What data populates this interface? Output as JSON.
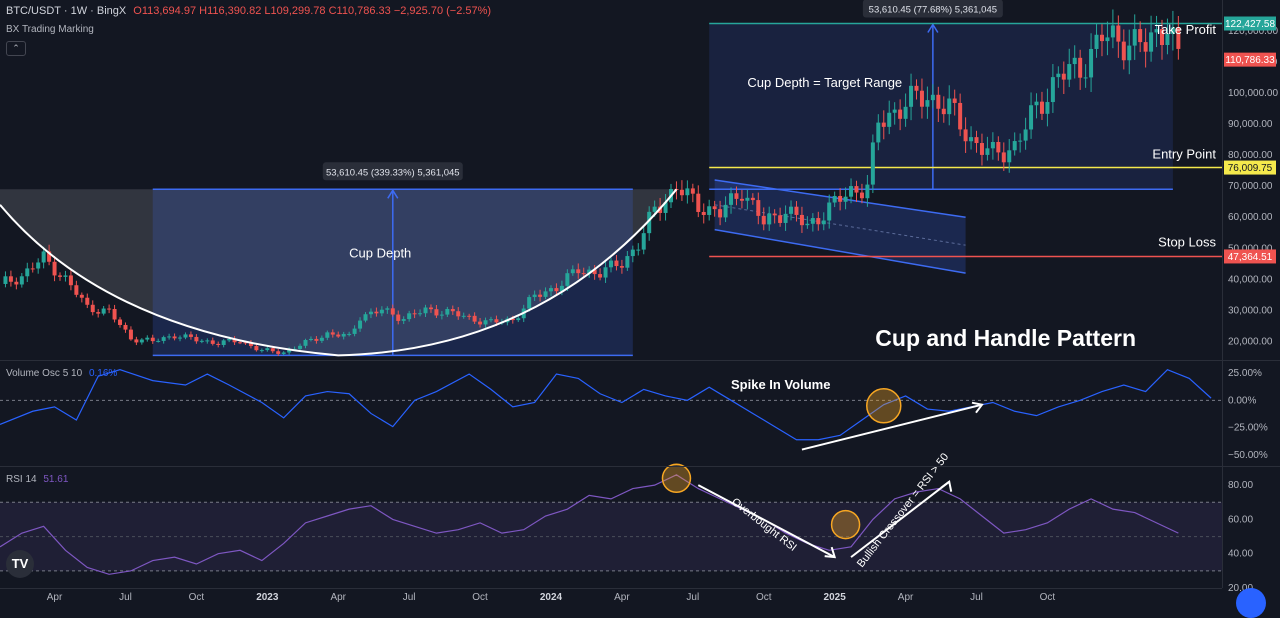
{
  "header": {
    "symbol": "BTC/USDT · 1W · BingX",
    "ohlc": "O113,694.97 H116,390.82 L109,299.78 C110,786.33 −2,925.70 (−2.57%)",
    "indicator": "BX Trading Marking",
    "collapse_icon": "chevron-up-icon"
  },
  "volume_panel": {
    "name": "Volume Osc 5 10",
    "value": "0.16%"
  },
  "rsi_panel": {
    "name": "RSI 14",
    "value": "51.61"
  },
  "logo": "TV",
  "colors": {
    "background": "#131722",
    "up": "#26a69a",
    "down": "#ef5350",
    "take_profit": "#26a69a",
    "entry": "#f5e94c",
    "stop": "#ef5350",
    "box_border": "#3d6bf2",
    "osc_line": "#2962ff",
    "rsi_line": "#7e57c2",
    "highlight": "#f6a623"
  },
  "chart_data": [
    {
      "type": "candlestick",
      "title": "Cup and Handle Pattern",
      "ylim": [
        14000,
        130000
      ],
      "y_ticks": [
        "20,000.00",
        "30,000.00",
        "40,000.00",
        "50,000.00",
        "60,000.00",
        "70,000.00",
        "80,000.00",
        "90,000.00",
        "100,000.00",
        "110,000.00",
        "120,000.00"
      ],
      "x_ticks": [
        "Apr",
        "Jul",
        "Oct",
        "2023",
        "Apr",
        "Jul",
        "Oct",
        "2024",
        "Apr",
        "Jul",
        "Oct",
        "2025",
        "Apr",
        "Jul",
        "Oct"
      ],
      "close_path": [
        [
          0,
          38500
        ],
        [
          4,
          41000
        ],
        [
          8,
          47000
        ],
        [
          12,
          40000
        ],
        [
          16,
          31000
        ],
        [
          20,
          29500
        ],
        [
          24,
          21000
        ],
        [
          28,
          20000
        ],
        [
          32,
          22000
        ],
        [
          36,
          20500
        ],
        [
          40,
          19500
        ],
        [
          44,
          20200
        ],
        [
          48,
          17000
        ],
        [
          52,
          16500
        ],
        [
          56,
          19500
        ],
        [
          60,
          22500
        ],
        [
          64,
          21500
        ],
        [
          66,
          28000
        ],
        [
          70,
          30000
        ],
        [
          74,
          27500
        ],
        [
          78,
          30000
        ],
        [
          82,
          29500
        ],
        [
          86,
          27500
        ],
        [
          90,
          26000
        ],
        [
          94,
          27000
        ],
        [
          98,
          34500
        ],
        [
          102,
          37500
        ],
        [
          106,
          43000
        ],
        [
          110,
          42000
        ],
        [
          114,
          45500
        ],
        [
          117,
          51000
        ],
        [
          120,
          62500
        ],
        [
          124,
          69500
        ],
        [
          128,
          64000
        ],
        [
          132,
          61000
        ],
        [
          136,
          69000
        ],
        [
          140,
          58000
        ],
        [
          144,
          62500
        ],
        [
          148,
          57000
        ],
        [
          152,
          63000
        ],
        [
          156,
          68500
        ],
        [
          159,
          70000
        ],
        [
          161,
          90000
        ],
        [
          166,
          97000
        ],
        [
          170,
          99000
        ],
        [
          174,
          95000
        ],
        [
          178,
          85000
        ],
        [
          182,
          80000
        ],
        [
          186,
          83000
        ],
        [
          190,
          95000
        ],
        [
          194,
          105500
        ],
        [
          198,
          108000
        ],
        [
          202,
          118000
        ],
        [
          206,
          117000
        ],
        [
          210,
          115000
        ],
        [
          214,
          123000
        ],
        [
          216,
          110786
        ]
      ],
      "annotations": {
        "cup_depth_label": "Cup Depth",
        "target_range_label": "Cup Depth = Target Range",
        "cup_measure": "53,610.45 (339.33%) 5,361,045",
        "target_measure": "53,610.45 (77.68%) 5,361,045",
        "take_profit_label": "Take Profit",
        "entry_label": "Entry Point",
        "stop_label": "Stop Loss"
      },
      "levels": {
        "take_profit": 122427.58,
        "take_profit_text": "122,427.58",
        "entry": 76009.75,
        "entry_text": "76,009.75",
        "stop": 47364.51,
        "stop_text": "47,364.51",
        "last": 110786.33,
        "last_text": "110,786.33"
      },
      "cup_box": {
        "x_start_week": 28,
        "x_end_week": 116,
        "low": 15500,
        "high": 69000
      },
      "target_box": {
        "x_start_week": 130,
        "x_end_week": 215,
        "low": 69000,
        "high": 122427.58
      },
      "handle_channel": {
        "x_start_week": 131,
        "x_end_week": 177
      }
    },
    {
      "type": "line",
      "name": "Volume Osc 5 10",
      "ylim": [
        -60,
        35
      ],
      "y_ticks": [
        "25.00%",
        "0.00%",
        "−25.00%",
        "−50.00%"
      ],
      "annotation": "Spike In Volume",
      "values": [
        [
          0,
          -22
        ],
        [
          6,
          -10
        ],
        [
          10,
          -6
        ],
        [
          14,
          -18
        ],
        [
          18,
          22
        ],
        [
          22,
          28
        ],
        [
          28,
          18
        ],
        [
          34,
          14
        ],
        [
          38,
          24
        ],
        [
          42,
          14
        ],
        [
          48,
          -2
        ],
        [
          52,
          -16
        ],
        [
          56,
          4
        ],
        [
          60,
          8
        ],
        [
          64,
          6
        ],
        [
          68,
          -12
        ],
        [
          72,
          -24
        ],
        [
          76,
          0
        ],
        [
          80,
          8
        ],
        [
          86,
          24
        ],
        [
          90,
          10
        ],
        [
          94,
          -6
        ],
        [
          98,
          -2
        ],
        [
          102,
          24
        ],
        [
          106,
          20
        ],
        [
          110,
          6
        ],
        [
          114,
          -2
        ],
        [
          118,
          10
        ],
        [
          122,
          4
        ],
        [
          126,
          0
        ],
        [
          130,
          12
        ],
        [
          134,
          0
        ],
        [
          138,
          -12
        ],
        [
          142,
          -24
        ],
        [
          146,
          -36
        ],
        [
          150,
          -36
        ],
        [
          154,
          -32
        ],
        [
          158,
          -18
        ],
        [
          162,
          -4
        ],
        [
          166,
          4
        ],
        [
          170,
          -8
        ],
        [
          174,
          -10
        ],
        [
          178,
          -6
        ],
        [
          182,
          -2
        ],
        [
          186,
          -10
        ],
        [
          190,
          -14
        ],
        [
          194,
          -6
        ],
        [
          198,
          0
        ],
        [
          202,
          8
        ],
        [
          206,
          14
        ],
        [
          210,
          8
        ],
        [
          214,
          28
        ],
        [
          218,
          20
        ],
        [
          222,
          2
        ]
      ]
    },
    {
      "type": "line",
      "name": "RSI 14",
      "ylim": [
        20,
        90
      ],
      "y_ticks": [
        "80.00",
        "60.00",
        "40.00",
        "20.00"
      ],
      "bands": [
        30,
        70
      ],
      "annotations": [
        "Overbought RSI",
        "Bullish Crossover = RSI > 50"
      ],
      "values": [
        [
          0,
          44
        ],
        [
          4,
          52
        ],
        [
          8,
          56
        ],
        [
          12,
          42
        ],
        [
          16,
          32
        ],
        [
          20,
          28
        ],
        [
          24,
          30
        ],
        [
          28,
          36
        ],
        [
          32,
          38
        ],
        [
          36,
          34
        ],
        [
          40,
          40
        ],
        [
          44,
          42
        ],
        [
          48,
          36
        ],
        [
          52,
          46
        ],
        [
          56,
          58
        ],
        [
          60,
          62
        ],
        [
          64,
          66
        ],
        [
          68,
          68
        ],
        [
          72,
          60
        ],
        [
          76,
          56
        ],
        [
          80,
          52
        ],
        [
          84,
          54
        ],
        [
          88,
          58
        ],
        [
          92,
          52
        ],
        [
          96,
          54
        ],
        [
          100,
          62
        ],
        [
          104,
          66
        ],
        [
          108,
          74
        ],
        [
          112,
          72
        ],
        [
          116,
          78
        ],
        [
          120,
          80
        ],
        [
          124,
          86
        ],
        [
          128,
          78
        ],
        [
          132,
          72
        ],
        [
          136,
          66
        ],
        [
          140,
          60
        ],
        [
          144,
          52
        ],
        [
          148,
          46
        ],
        [
          152,
          42
        ],
        [
          156,
          44
        ],
        [
          160,
          60
        ],
        [
          164,
          72
        ],
        [
          168,
          76
        ],
        [
          172,
          78
        ],
        [
          176,
          72
        ],
        [
          180,
          62
        ],
        [
          184,
          52
        ],
        [
          188,
          54
        ],
        [
          192,
          58
        ],
        [
          196,
          66
        ],
        [
          200,
          72
        ],
        [
          204,
          66
        ],
        [
          208,
          64
        ],
        [
          212,
          58
        ],
        [
          216,
          52
        ]
      ]
    }
  ]
}
